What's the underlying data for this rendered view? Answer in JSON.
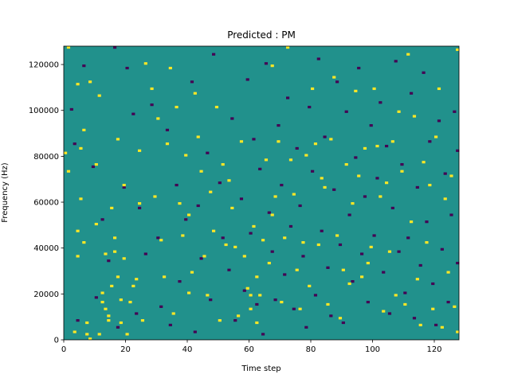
{
  "chart_data": {
    "type": "heatmap",
    "title": "Predicted : PM",
    "xlabel": "Time step",
    "ylabel": "Frequency (Hz)",
    "xlim": [
      0,
      128
    ],
    "ylim": [
      0,
      128000
    ],
    "x_ticks": [
      0,
      20,
      40,
      60,
      80,
      100,
      120
    ],
    "y_ticks": [
      0,
      20000,
      40000,
      60000,
      80000,
      100000,
      120000
    ],
    "n_time_steps": 128,
    "n_freq_bins": 128,
    "colormap": "viridis",
    "background_value": 0,
    "colors": {
      "low": "#440154",
      "mid": "#21918c",
      "high": "#fde725"
    },
    "high_cells": [
      [
        0,
        81000
      ],
      [
        1,
        128000
      ],
      [
        1,
        73000
      ],
      [
        3,
        3000
      ],
      [
        4,
        111000
      ],
      [
        4,
        47000
      ],
      [
        4,
        36000
      ],
      [
        5,
        83000
      ],
      [
        5,
        61000
      ],
      [
        6,
        91000
      ],
      [
        6,
        42000
      ],
      [
        7,
        7000
      ],
      [
        7,
        2000
      ],
      [
        8,
        112000
      ],
      [
        8,
        0
      ],
      [
        10,
        76000
      ],
      [
        10,
        50000
      ],
      [
        11,
        106000
      ],
      [
        11,
        2000
      ],
      [
        12,
        20000
      ],
      [
        12,
        16000
      ],
      [
        13,
        13000
      ],
      [
        13,
        37000
      ],
      [
        14,
        10000
      ],
      [
        14,
        8000
      ],
      [
        15,
        57000
      ],
      [
        15,
        23000
      ],
      [
        16,
        44000
      ],
      [
        16,
        38000
      ],
      [
        17,
        87000
      ],
      [
        17,
        27000
      ],
      [
        18,
        17000
      ],
      [
        18,
        7000
      ],
      [
        19,
        67000
      ],
      [
        19,
        35000
      ],
      [
        20,
        2000
      ],
      [
        21,
        16000
      ],
      [
        22,
        23000
      ],
      [
        23,
        26000
      ],
      [
        24,
        82000
      ],
      [
        24,
        59000
      ],
      [
        25,
        8000
      ],
      [
        26,
        120000
      ],
      [
        28,
        109000
      ],
      [
        29,
        62000
      ],
      [
        30,
        96000
      ],
      [
        31,
        43000
      ],
      [
        32,
        27000
      ],
      [
        33,
        85000
      ],
      [
        34,
        118000
      ],
      [
        35,
        11000
      ],
      [
        36,
        101000
      ],
      [
        37,
        59000
      ],
      [
        38,
        45000
      ],
      [
        39,
        80000
      ],
      [
        40,
        54000
      ],
      [
        40,
        20000
      ],
      [
        41,
        29000
      ],
      [
        42,
        107000
      ],
      [
        43,
        88000
      ],
      [
        44,
        73000
      ],
      [
        45,
        36000
      ],
      [
        46,
        19000
      ],
      [
        47,
        64000
      ],
      [
        48,
        47000
      ],
      [
        49,
        101000
      ],
      [
        50,
        8000
      ],
      [
        51,
        76000
      ],
      [
        52,
        41000
      ],
      [
        53,
        69000
      ],
      [
        54,
        57000
      ],
      [
        55,
        40000
      ],
      [
        56,
        10000
      ],
      [
        57,
        86000
      ],
      [
        58,
        36000
      ],
      [
        59,
        22000
      ],
      [
        60,
        19000
      ],
      [
        60,
        13000
      ],
      [
        61,
        49000
      ],
      [
        62,
        27000
      ],
      [
        62,
        7000
      ],
      [
        63,
        19000
      ],
      [
        64,
        43000
      ],
      [
        65,
        78000
      ],
      [
        66,
        33000
      ],
      [
        67,
        119000
      ],
      [
        67,
        54000
      ],
      [
        68,
        62000
      ],
      [
        69,
        86000
      ],
      [
        70,
        16000
      ],
      [
        71,
        44000
      ],
      [
        72,
        128000
      ],
      [
        73,
        78000
      ],
      [
        74,
        63000
      ],
      [
        75,
        30000
      ],
      [
        76,
        13000
      ],
      [
        77,
        42000
      ],
      [
        78,
        80000
      ],
      [
        79,
        23000
      ],
      [
        80,
        109000
      ],
      [
        81,
        85000
      ],
      [
        82,
        41000
      ],
      [
        83,
        70000
      ],
      [
        84,
        66000
      ],
      [
        85,
        15000
      ],
      [
        86,
        87000
      ],
      [
        87,
        114000
      ],
      [
        88,
        45000
      ],
      [
        89,
        9000
      ],
      [
        90,
        30000
      ],
      [
        91,
        76000
      ],
      [
        92,
        24000
      ],
      [
        93,
        59000
      ],
      [
        94,
        108000
      ],
      [
        95,
        71000
      ],
      [
        96,
        27000
      ],
      [
        97,
        83000
      ],
      [
        98,
        33000
      ],
      [
        99,
        40000
      ],
      [
        100,
        109000
      ],
      [
        101,
        84000
      ],
      [
        102,
        62000
      ],
      [
        103,
        12000
      ],
      [
        104,
        68000
      ],
      [
        105,
        38000
      ],
      [
        106,
        86000
      ],
      [
        107,
        19000
      ],
      [
        108,
        99000
      ],
      [
        109,
        73000
      ],
      [
        110,
        15000
      ],
      [
        111,
        124000
      ],
      [
        112,
        51000
      ],
      [
        113,
        97000
      ],
      [
        114,
        26000
      ],
      [
        115,
        6000
      ],
      [
        116,
        77000
      ],
      [
        117,
        42000
      ],
      [
        118,
        67000
      ],
      [
        119,
        13000
      ],
      [
        120,
        88000
      ],
      [
        121,
        109000
      ],
      [
        122,
        5000
      ],
      [
        123,
        61000
      ],
      [
        124,
        29000
      ],
      [
        125,
        71000
      ],
      [
        126,
        14000
      ],
      [
        127,
        3000
      ],
      [
        127,
        126000
      ]
    ],
    "low_cells": [
      [
        2,
        100000
      ],
      [
        3,
        85000
      ],
      [
        4,
        8000
      ],
      [
        6,
        119000
      ],
      [
        9,
        75000
      ],
      [
        10,
        18000
      ],
      [
        12,
        52000
      ],
      [
        14,
        34000
      ],
      [
        16,
        128000
      ],
      [
        17,
        5000
      ],
      [
        19,
        66000
      ],
      [
        20,
        118000
      ],
      [
        22,
        98000
      ],
      [
        23,
        11000
      ],
      [
        24,
        57000
      ],
      [
        26,
        37000
      ],
      [
        28,
        102000
      ],
      [
        30,
        44000
      ],
      [
        31,
        14000
      ],
      [
        33,
        91000
      ],
      [
        34,
        6000
      ],
      [
        36,
        67000
      ],
      [
        37,
        25000
      ],
      [
        39,
        52000
      ],
      [
        41,
        112000
      ],
      [
        42,
        3000
      ],
      [
        43,
        58000
      ],
      [
        44,
        35000
      ],
      [
        46,
        81000
      ],
      [
        47,
        17000
      ],
      [
        48,
        124000
      ],
      [
        50,
        68000
      ],
      [
        51,
        44000
      ],
      [
        53,
        30000
      ],
      [
        54,
        96000
      ],
      [
        55,
        8000
      ],
      [
        57,
        61000
      ],
      [
        58,
        21000
      ],
      [
        59,
        113000
      ],
      [
        60,
        46000
      ],
      [
        61,
        87000
      ],
      [
        62,
        15000
      ],
      [
        63,
        74000
      ],
      [
        64,
        2000
      ],
      [
        65,
        120000
      ],
      [
        66,
        55000
      ],
      [
        67,
        38000
      ],
      [
        68,
        17000
      ],
      [
        69,
        93000
      ],
      [
        70,
        67000
      ],
      [
        71,
        28000
      ],
      [
        72,
        105000
      ],
      [
        73,
        49000
      ],
      [
        74,
        13000
      ],
      [
        75,
        83000
      ],
      [
        76,
        58000
      ],
      [
        77,
        36000
      ],
      [
        78,
        5000
      ],
      [
        79,
        101000
      ],
      [
        80,
        73000
      ],
      [
        81,
        19000
      ],
      [
        82,
        122000
      ],
      [
        83,
        47000
      ],
      [
        84,
        88000
      ],
      [
        85,
        31000
      ],
      [
        86,
        10000
      ],
      [
        87,
        65000
      ],
      [
        88,
        112000
      ],
      [
        89,
        41000
      ],
      [
        90,
        7000
      ],
      [
        91,
        99000
      ],
      [
        92,
        54000
      ],
      [
        93,
        25000
      ],
      [
        94,
        79000
      ],
      [
        95,
        118000
      ],
      [
        96,
        37000
      ],
      [
        97,
        62000
      ],
      [
        98,
        16000
      ],
      [
        99,
        93000
      ],
      [
        100,
        45000
      ],
      [
        101,
        70000
      ],
      [
        102,
        103000
      ],
      [
        103,
        29000
      ],
      [
        104,
        84000
      ],
      [
        105,
        11000
      ],
      [
        106,
        57000
      ],
      [
        107,
        121000
      ],
      [
        108,
        38000
      ],
      [
        109,
        76000
      ],
      [
        110,
        20000
      ],
      [
        111,
        44000
      ],
      [
        112,
        107000
      ],
      [
        113,
        9000
      ],
      [
        114,
        66000
      ],
      [
        115,
        32000
      ],
      [
        116,
        116000
      ],
      [
        117,
        51000
      ],
      [
        118,
        86000
      ],
      [
        119,
        24000
      ],
      [
        120,
        6000
      ],
      [
        121,
        95000
      ],
      [
        122,
        39000
      ],
      [
        123,
        72000
      ],
      [
        124,
        16000
      ],
      [
        125,
        54000
      ],
      [
        126,
        99000
      ],
      [
        127,
        82000
      ],
      [
        127,
        33000
      ]
    ]
  }
}
